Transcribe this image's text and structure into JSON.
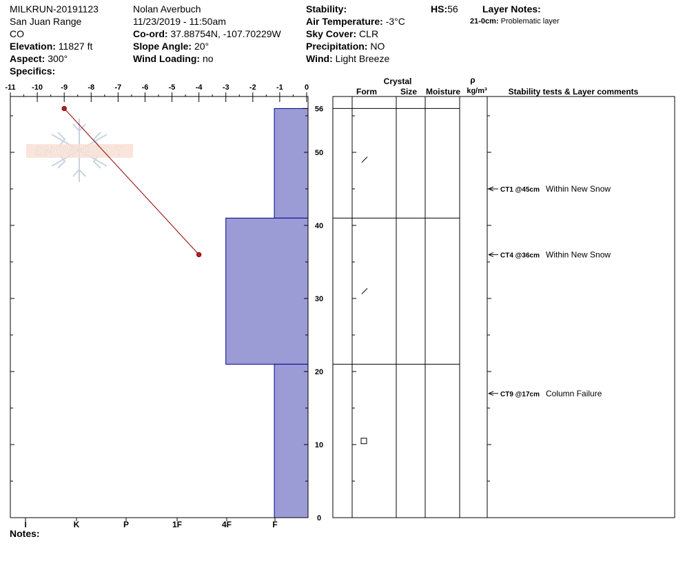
{
  "header": {
    "col1": {
      "pit_id": "MILKRUN-20191123",
      "range": "San Juan Range",
      "state": "CO",
      "elevation_label": "Elevation:",
      "elevation_value": "11827 ft",
      "aspect_label": "Aspect:",
      "aspect_value": "300°",
      "specifics_label": "Specifics:"
    },
    "col2": {
      "observer": "Nolan Averbuch",
      "datetime": "11/23/2019 - 11:50am",
      "coord_label": "Co-ord:",
      "coord_value": "37.88754N, -107.70229W",
      "slope_label": "Slope Angle:",
      "slope_value": "20°",
      "wind_loading_label": "Wind Loading:",
      "wind_loading_value": "no"
    },
    "col3": {
      "stability_label": "Stability:",
      "air_temp_label": "Air Temperature:",
      "air_temp_value": "-3°C",
      "sky_label": "Sky Cover:",
      "sky_value": "CLR",
      "precip_label": "Precipitation:",
      "precip_value": "NO",
      "wind_label": "Wind:",
      "wind_value": "Light Breeze"
    },
    "hs_label": "HS:",
    "hs_value": "56",
    "layer_notes_label": "Layer Notes:",
    "layer_note_range": "21-0cm:",
    "layer_note_text": "Problematic layer"
  },
  "watermark": "SNOW PILOT",
  "notes_label": "Notes:",
  "table_headers": {
    "crystal": "Crystal",
    "form": "Form",
    "size": "Size",
    "moisture": "Moisture",
    "rho": "ρ",
    "density_unit": "kg/m³",
    "stability": "Stability tests & Layer comments"
  },
  "chart_data": {
    "type": "snow-profile",
    "temperature_axis": {
      "ticks": [
        "-11",
        "-10",
        "-9",
        "-8",
        "-7",
        "-6",
        "-5",
        "-4",
        "-3",
        "-2",
        "-1",
        "0"
      ],
      "range": [
        -11,
        0
      ]
    },
    "height_axis": {
      "ticks": [
        "0",
        "10",
        "20",
        "30",
        "40",
        "50",
        "56"
      ],
      "range": [
        0,
        56
      ]
    },
    "hardness_axis": {
      "labels": [
        "I",
        "K",
        "P",
        "1F",
        "4F",
        "F"
      ]
    },
    "temperature_profile": [
      {
        "height": 56,
        "temp": -9
      },
      {
        "height": 36,
        "temp": -4
      }
    ],
    "hardness_layers": [
      {
        "top": 56,
        "bottom": 41,
        "hardness_value": -1.2
      },
      {
        "top": 41,
        "bottom": 21,
        "hardness_value": -3
      },
      {
        "top": 21,
        "bottom": 0,
        "hardness_value": -1.2
      }
    ],
    "layer_boundaries": [
      56,
      41,
      21,
      0
    ],
    "crystal_symbols": [
      {
        "height": 49,
        "symbol": "slash"
      },
      {
        "height": 31,
        "symbol": "slash"
      },
      {
        "height": 10.5,
        "symbol": "square"
      }
    ],
    "stability_tests": [
      {
        "height": 45,
        "code": "CT1 @45cm",
        "comment": "Within New Snow"
      },
      {
        "height": 36,
        "code": "CT4 @36cm",
        "comment": "Within New Snow"
      },
      {
        "height": 17,
        "code": "CT9 @17cm",
        "comment": "Column Failure"
      }
    ],
    "colors": {
      "hardness_fill": "#9b9bd6",
      "hardness_stroke": "#00008b",
      "temp_line": "#8b0000",
      "temp_point": "#b22222"
    }
  }
}
